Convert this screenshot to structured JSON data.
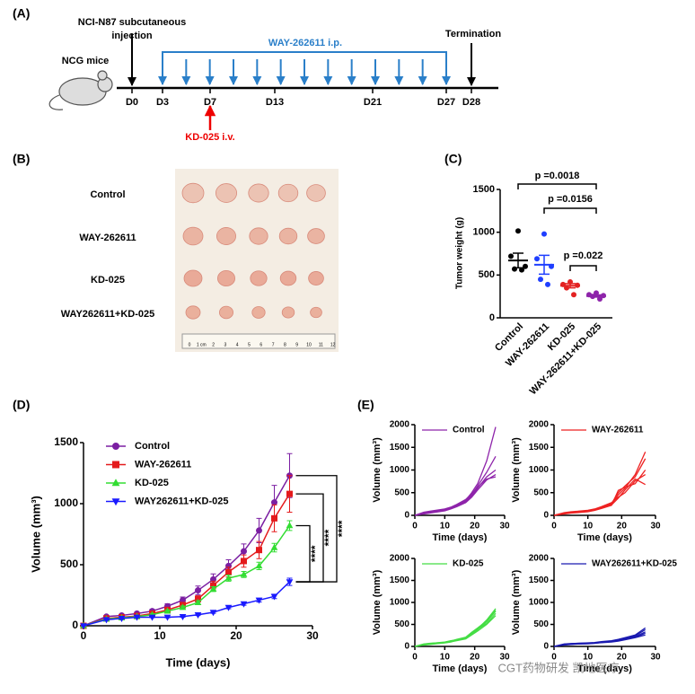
{
  "panels": [
    "(A)",
    "(B)",
    "(C)",
    "(D)",
    "(E)"
  ],
  "timeline": {
    "mice": "NCG mice",
    "injection": [
      "NCI-N87 subcutaneous",
      "injection"
    ],
    "treatment": "WAY-262611 i.p.",
    "kd": "KD-025 i.v.",
    "termination": "Termination",
    "days": [
      "D0",
      "D3",
      "D7",
      "D13",
      "D21",
      "D27",
      "D28"
    ]
  },
  "photo": {
    "rows": [
      "Control",
      "WAY-262611",
      "KD-025",
      "WAY262611+KD-025"
    ],
    "ruler_labels": [
      "0",
      "1 cm",
      "2",
      "3",
      "4",
      "5",
      "6",
      "7",
      "8",
      "9",
      "10",
      "11",
      "12"
    ]
  },
  "chart_data": [
    {
      "type": "dot",
      "y_label": "Tumor weight (g)",
      "categories": [
        "Control",
        "WAY-262611",
        "KD-025",
        "WAY-262611+KD-025"
      ],
      "values": [
        [
          1015,
          720,
          600,
          570,
          560
        ],
        [
          980,
          690,
          600,
          450,
          390
        ],
        [
          420,
          390,
          380,
          350,
          270
        ],
        [
          290,
          270,
          260,
          250,
          220
        ]
      ],
      "mean": [
        670,
        620,
        375,
        255
      ],
      "sem": [
        85,
        110,
        25,
        12
      ],
      "colors": [
        "#000000",
        "#1f3fff",
        "#e32222",
        "#8e24aa"
      ],
      "ylim": [
        0,
        1500
      ],
      "yticks": [
        0,
        500,
        1000,
        1500
      ],
      "p_values": [
        "p =0.0018",
        "p =0.0156",
        "p =0.022"
      ]
    },
    {
      "type": "line",
      "x_label": "Time (days)",
      "y_label": "Volume (mm³)",
      "x": [
        0,
        3,
        5,
        7,
        9,
        11,
        13,
        15,
        17,
        19,
        21,
        23,
        25,
        27
      ],
      "xlim": [
        0,
        30
      ],
      "xticks": [
        0,
        10,
        20,
        30
      ],
      "ylim": [
        0,
        1500
      ],
      "yticks": [
        0,
        500,
        1000,
        1500
      ],
      "series": [
        {
          "name": "Control",
          "color": "#7b1fa2",
          "marker": "circle",
          "values": [
            0,
            75,
            85,
            100,
            120,
            160,
            210,
            290,
            380,
            490,
            610,
            780,
            1010,
            1230
          ],
          "errors": [
            0,
            10,
            10,
            12,
            15,
            20,
            25,
            35,
            45,
            50,
            60,
            100,
            140,
            180
          ]
        },
        {
          "name": "WAY-262611",
          "color": "#e41a1c",
          "marker": "square",
          "values": [
            0,
            60,
            70,
            80,
            100,
            130,
            170,
            220,
            330,
            440,
            530,
            620,
            880,
            1080
          ],
          "errors": [
            0,
            8,
            8,
            10,
            12,
            15,
            20,
            25,
            35,
            40,
            50,
            70,
            110,
            150
          ]
        },
        {
          "name": "KD-025",
          "color": "#33dd33",
          "marker": "triangle",
          "values": [
            0,
            55,
            65,
            75,
            90,
            120,
            150,
            190,
            300,
            390,
            420,
            490,
            640,
            820
          ],
          "errors": [
            0,
            5,
            5,
            6,
            8,
            10,
            12,
            15,
            20,
            25,
            25,
            30,
            35,
            40
          ]
        },
        {
          "name": "WAY262611+KD-025",
          "color": "#1a1aff",
          "marker": "triangle-down",
          "values": [
            0,
            50,
            60,
            70,
            70,
            70,
            75,
            90,
            110,
            150,
            180,
            210,
            240,
            360
          ],
          "errors": [
            0,
            4,
            4,
            4,
            4,
            5,
            5,
            6,
            8,
            10,
            12,
            15,
            18,
            30
          ]
        }
      ],
      "significance": [
        "****",
        "****",
        "****"
      ]
    },
    {
      "type": "line",
      "legend": "Control",
      "color": "#8e24aa",
      "x_label": "Time (days)",
      "y_label": "Volume (mm³)",
      "x": [
        0,
        3,
        5,
        7,
        10,
        12,
        14,
        17,
        19,
        21,
        24,
        27
      ],
      "xlim": [
        0,
        30
      ],
      "xticks": [
        0,
        10,
        20,
        30
      ],
      "ylim": [
        0,
        2000
      ],
      "yticks": [
        0,
        500,
        1000,
        1500,
        2000
      ],
      "series": [
        {
          "values": [
            0,
            40,
            60,
            80,
            120,
            170,
            230,
            330,
            500,
            700,
            1200,
            1950
          ]
        },
        {
          "values": [
            0,
            50,
            70,
            90,
            110,
            150,
            220,
            320,
            450,
            650,
            950,
            1300
          ]
        },
        {
          "values": [
            0,
            60,
            80,
            100,
            130,
            160,
            200,
            300,
            420,
            600,
            850,
            1000
          ]
        },
        {
          "values": [
            0,
            30,
            50,
            70,
            100,
            140,
            190,
            280,
            400,
            560,
            780,
            900
          ]
        },
        {
          "values": [
            0,
            70,
            90,
            110,
            140,
            180,
            240,
            350,
            480,
            620,
            800,
            850
          ]
        }
      ]
    },
    {
      "type": "line",
      "legend": "WAY-262611",
      "color": "#ee2222",
      "x_label": "Time (days)",
      "y_label": "Volume (mm³)",
      "x": [
        0,
        3,
        5,
        7,
        10,
        12,
        14,
        17,
        19,
        21,
        24,
        27
      ],
      "xlim": [
        0,
        30
      ],
      "xticks": [
        0,
        10,
        20,
        30
      ],
      "ylim": [
        0,
        2000
      ],
      "yticks": [
        0,
        500,
        1000,
        1500,
        2000
      ],
      "series": [
        {
          "values": [
            0,
            40,
            60,
            70,
            90,
            120,
            170,
            240,
            450,
            600,
            900,
            1400
          ]
        },
        {
          "values": [
            0,
            50,
            70,
            80,
            100,
            130,
            180,
            260,
            500,
            650,
            850,
            1250
          ]
        },
        {
          "values": [
            0,
            30,
            50,
            60,
            80,
            110,
            150,
            220,
            550,
            620,
            700,
            1000
          ]
        },
        {
          "values": [
            0,
            60,
            80,
            90,
            110,
            140,
            190,
            280,
            400,
            500,
            760,
            900
          ]
        },
        {
          "values": [
            0,
            45,
            60,
            75,
            95,
            125,
            160,
            230,
            380,
            560,
            800,
            680
          ]
        }
      ]
    },
    {
      "type": "line",
      "legend": "KD-025",
      "color": "#44dd44",
      "x_label": "Time (days)",
      "y_label": "Volume (mm³)",
      "x": [
        0,
        3,
        5,
        7,
        10,
        12,
        14,
        17,
        19,
        21,
        24,
        27
      ],
      "xlim": [
        0,
        30
      ],
      "xticks": [
        0,
        10,
        20,
        30
      ],
      "ylim": [
        0,
        2000
      ],
      "yticks": [
        0,
        500,
        1000,
        1500,
        2000
      ],
      "series": [
        {
          "values": [
            0,
            40,
            60,
            70,
            90,
            110,
            150,
            200,
            300,
            400,
            600,
            860
          ]
        },
        {
          "values": [
            0,
            50,
            65,
            75,
            95,
            120,
            160,
            210,
            320,
            420,
            580,
            820
          ]
        },
        {
          "values": [
            0,
            30,
            45,
            60,
            80,
            100,
            140,
            180,
            280,
            380,
            560,
            800
          ]
        },
        {
          "values": [
            0,
            55,
            70,
            80,
            100,
            130,
            150,
            190,
            290,
            390,
            520,
            750
          ]
        },
        {
          "values": [
            0,
            35,
            50,
            65,
            85,
            105,
            130,
            170,
            260,
            350,
            500,
            700
          ]
        }
      ]
    },
    {
      "type": "line",
      "legend": "WAY262611+KD-025",
      "color": "#1a1ab0",
      "x_label": "Time (days)",
      "y_label": "Volume (mm³)",
      "x": [
        0,
        3,
        5,
        7,
        10,
        12,
        14,
        17,
        19,
        21,
        24,
        27
      ],
      "xlim": [
        0,
        30
      ],
      "xticks": [
        0,
        10,
        20,
        30
      ],
      "ylim": [
        0,
        2000
      ],
      "yticks": [
        0,
        500,
        1000,
        1500,
        2000
      ],
      "series": [
        {
          "values": [
            0,
            40,
            60,
            70,
            80,
            90,
            110,
            130,
            160,
            200,
            260,
            420
          ]
        },
        {
          "values": [
            0,
            50,
            60,
            65,
            70,
            80,
            100,
            120,
            150,
            190,
            240,
            380
          ]
        },
        {
          "values": [
            0,
            30,
            45,
            55,
            60,
            70,
            90,
            110,
            140,
            180,
            220,
            330
          ]
        },
        {
          "values": [
            0,
            55,
            65,
            70,
            75,
            80,
            95,
            115,
            135,
            170,
            210,
            300
          ]
        },
        {
          "values": [
            0,
            35,
            50,
            60,
            65,
            75,
            85,
            100,
            120,
            150,
            200,
            260
          ]
        }
      ]
    }
  ],
  "watermark": "CGT药物研发 凯地医疗"
}
